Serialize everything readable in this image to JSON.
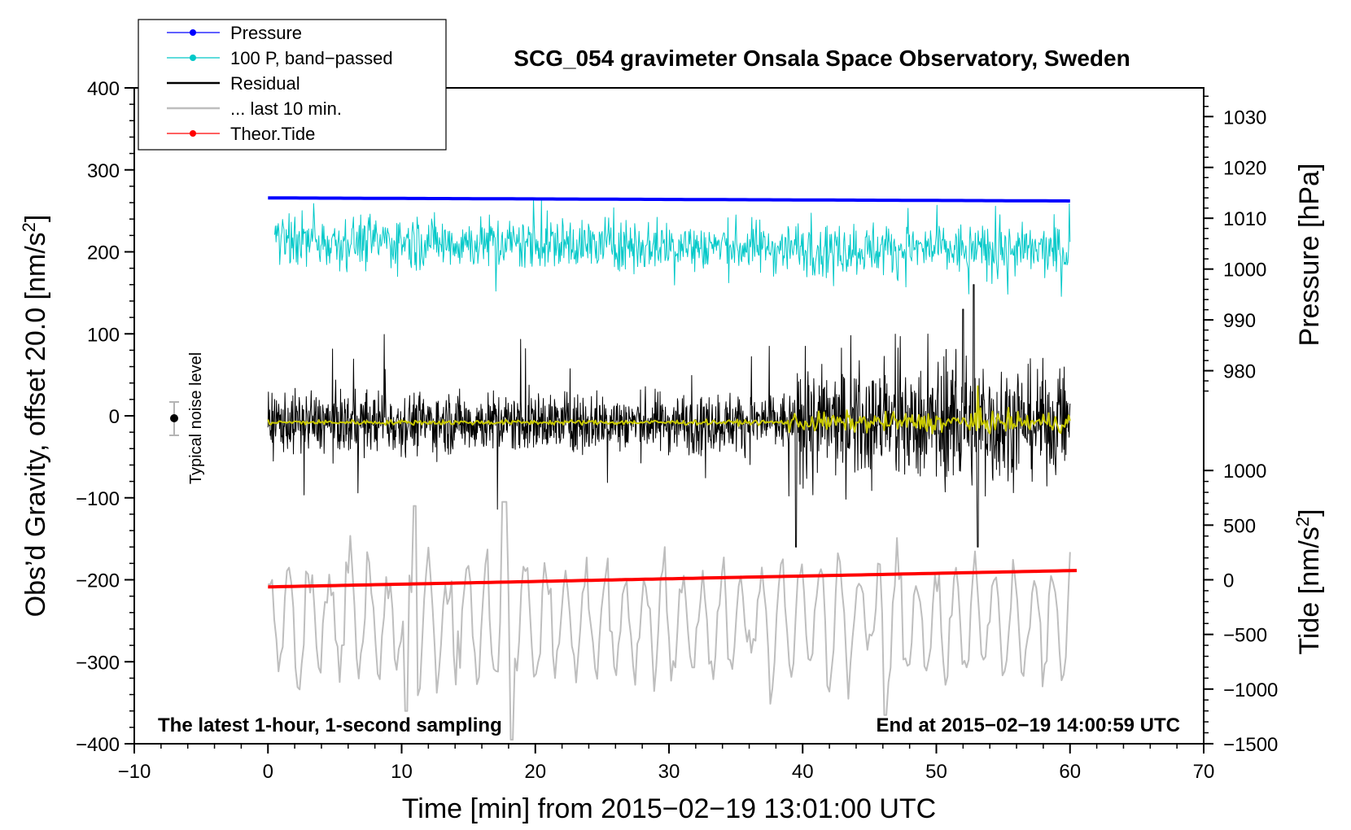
{
  "chart_data": {
    "type": "line",
    "title": "SCG_054 gravimeter Onsala Space Observatory, Sweden",
    "xlabel": "Time [min] from 2015−02−19 13:01:00 UTC",
    "ylabel_left": "Obs’d Gravity, offset 20.0 [nm/s",
    "ylabel_right_pressure": "Pressure [hPa]",
    "ylabel_right_tide": "Tide [nm/s",
    "unit_superscript": "2",
    "unit_close": "]",
    "xlim": [
      -10,
      70
    ],
    "ylim_left": [
      -400,
      400
    ],
    "x_ticks": [
      -10,
      0,
      10,
      20,
      30,
      40,
      50,
      60,
      70
    ],
    "x_tick_labels": [
      "−10",
      "0",
      "10",
      "20",
      "30",
      "40",
      "50",
      "60",
      "70"
    ],
    "y_left_ticks": [
      400,
      300,
      200,
      100,
      0,
      -100,
      -200,
      -300,
      -400
    ],
    "y_left_tick_labels": [
      "400",
      "300",
      "200",
      "100",
      "0",
      "−100",
      "−200",
      "−300",
      "−400"
    ],
    "pressure_axis": {
      "ticks": [
        1030,
        1020,
        1010,
        1000,
        990,
        980
      ],
      "tick_labels": [
        "1030",
        "1020",
        "1010",
        "1000",
        "990",
        "980"
      ],
      "left_value_at_1030": 365,
      "left_units_per_hpa": 6.2
    },
    "tide_axis": {
      "ticks": [
        1000,
        500,
        0,
        -500,
        -1000,
        -1500
      ],
      "tick_labels": [
        "1000",
        "500",
        "0",
        "−500",
        "−1000",
        "−1500"
      ],
      "left_value_at_0": -200,
      "left_units_per_nms2": 0.1333
    },
    "notes": {
      "left": "The latest 1-hour, 1-second sampling",
      "right": "End at 2015−02−19 14:00:59 UTC"
    },
    "noise_indicator": {
      "label": "Typical noise level",
      "x": -7,
      "center": 0,
      "half_range": 20
    },
    "legend": {
      "position": "top-left",
      "entries": [
        {
          "label": "Pressure",
          "color": "#0000ff",
          "marker": true
        },
        {
          "label": "100 P, band−passed",
          "color": "#00c8c8",
          "marker": true
        },
        {
          "label": "Residual",
          "color": "#000000",
          "marker": false
        },
        {
          "label": "... last 10 min.",
          "color": "#bebebe",
          "marker": false
        },
        {
          "label": "Theor.Tide",
          "color": "#ff0000",
          "marker": true
        }
      ]
    },
    "series": [
      {
        "name": "Pressure",
        "color": "#0000ff",
        "x_range": [
          0,
          60
        ],
        "level_hpa_start": 1014.0,
        "level_hpa_end": 1013.4
      },
      {
        "name": "100 P, band−passed",
        "color": "#00c8c8",
        "x_range": [
          0.5,
          60
        ],
        "center": 200,
        "amplitude_range": [
          -60,
          65
        ]
      },
      {
        "name": "Residual",
        "color": "#000000",
        "x_range": [
          0,
          60
        ],
        "center": -8,
        "amplitude_range": [
          -165,
          165
        ]
      },
      {
        "name": "Residual smoothed",
        "color": "#c8c800",
        "x_range": [
          0,
          60
        ],
        "center": -8
      },
      {
        "name": "... last 10 min.",
        "color": "#bebebe",
        "x_range": [
          0,
          60
        ],
        "center": -250,
        "amplitude_range": [
          -150,
          100
        ]
      },
      {
        "name": "Theor.Tide",
        "color": "#ff0000",
        "x": [
          0,
          60.5
        ],
        "values_nms2": [
          -65,
          85
        ]
      }
    ]
  }
}
